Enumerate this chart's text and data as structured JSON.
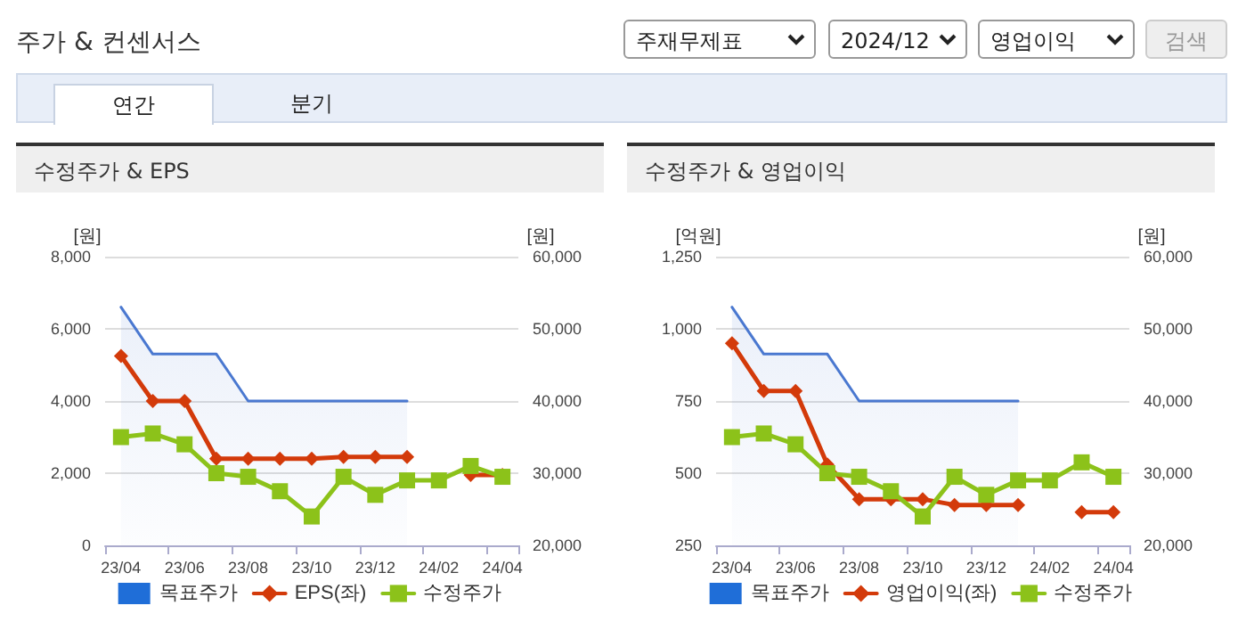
{
  "chart_data": [
    {
      "type": "other",
      "title": "주가 & 컨센서스",
      "annotations": [
        "주재무제표",
        "2024/12",
        "영업이익",
        "검색",
        "연간",
        "분기"
      ]
    },
    {
      "type": "line",
      "title": "수정주가 & EPS",
      "ylabel": "[원]",
      "y2label": "[원]",
      "categories": [
        "23/04",
        null,
        "23/06",
        null,
        "23/08",
        null,
        "23/10",
        null,
        "23/12",
        null,
        "24/02",
        null,
        "24/04"
      ],
      "ylim": [
        0,
        8000
      ],
      "yticks": [
        0,
        {
          "value": 2000,
          "label": "2,000"
        },
        {
          "value": 4000,
          "label": "4,000"
        },
        {
          "value": 6000,
          "label": "6,000"
        },
        {
          "value": 8000,
          "label": "8,000"
        }
      ],
      "y2lim": [
        20000,
        60000
      ],
      "y2ticks": [
        {
          "value": 20000,
          "label": "20,000"
        },
        {
          "value": 30000,
          "label": "30,000"
        },
        {
          "value": 40000,
          "label": "40,000"
        },
        {
          "value": 50000,
          "label": "50,000"
        },
        {
          "value": 60000,
          "label": "60,000"
        }
      ],
      "grid": "y",
      "legend": "bottom",
      "series": [
        {
          "name": "목표주가",
          "type": "area",
          "axis": "y2",
          "color": "#4a78d0",
          "marker": "none",
          "values": [
            53000,
            46500,
            46500,
            46500,
            40000,
            40000,
            40000,
            40000,
            40000,
            40000,
            null,
            null,
            null
          ]
        },
        {
          "name": "EPS(좌)",
          "color": "#d33a0a",
          "marker": "diamond",
          "values": [
            5250,
            4000,
            4000,
            2400,
            2400,
            2400,
            2400,
            2450,
            2450,
            2450,
            null,
            1950,
            1950
          ]
        },
        {
          "name": "수정주가",
          "axis": "y2",
          "color": "#8cc21a",
          "marker": "square",
          "values": [
            35000,
            35500,
            34000,
            30000,
            29500,
            27500,
            24000,
            29500,
            27000,
            29000,
            29000,
            31000,
            29500
          ]
        }
      ]
    },
    {
      "type": "line",
      "title": "수정주가 & 영업이익",
      "ylabel": "[억원]",
      "y2label": "[원]",
      "categories": [
        "23/04",
        null,
        "23/06",
        null,
        "23/08",
        null,
        "23/10",
        null,
        "23/12",
        null,
        "24/02",
        null,
        "24/04"
      ],
      "ylim": [
        250,
        1250
      ],
      "yticks": [
        250,
        500,
        750,
        {
          "value": 1000,
          "label": "1,000"
        },
        {
          "value": 1250,
          "label": "1,250"
        }
      ],
      "y2lim": [
        20000,
        60000
      ],
      "y2ticks": [
        {
          "value": 20000,
          "label": "20,000"
        },
        {
          "value": 30000,
          "label": "30,000"
        },
        {
          "value": 40000,
          "label": "40,000"
        },
        {
          "value": 50000,
          "label": "50,000"
        },
        {
          "value": 60000,
          "label": "60,000"
        }
      ],
      "grid": "y",
      "legend": "bottom",
      "series": [
        {
          "name": "목표주가",
          "type": "area",
          "axis": "y2",
          "color": "#4a78d0",
          "marker": "none",
          "values": [
            53000,
            46500,
            46500,
            46500,
            40000,
            40000,
            40000,
            40000,
            40000,
            40000,
            null,
            null,
            null
          ]
        },
        {
          "name": "영업이익(좌)",
          "color": "#d33a0a",
          "marker": "diamond",
          "values": [
            950,
            785,
            785,
            530,
            410,
            410,
            410,
            390,
            390,
            390,
            null,
            365,
            365
          ]
        },
        {
          "name": "수정주가",
          "axis": "y2",
          "color": "#8cc21a",
          "marker": "square",
          "values": [
            35000,
            35500,
            34000,
            30000,
            29500,
            27500,
            24000,
            29500,
            27000,
            29000,
            29000,
            31500,
            29500
          ]
        }
      ]
    }
  ]
}
